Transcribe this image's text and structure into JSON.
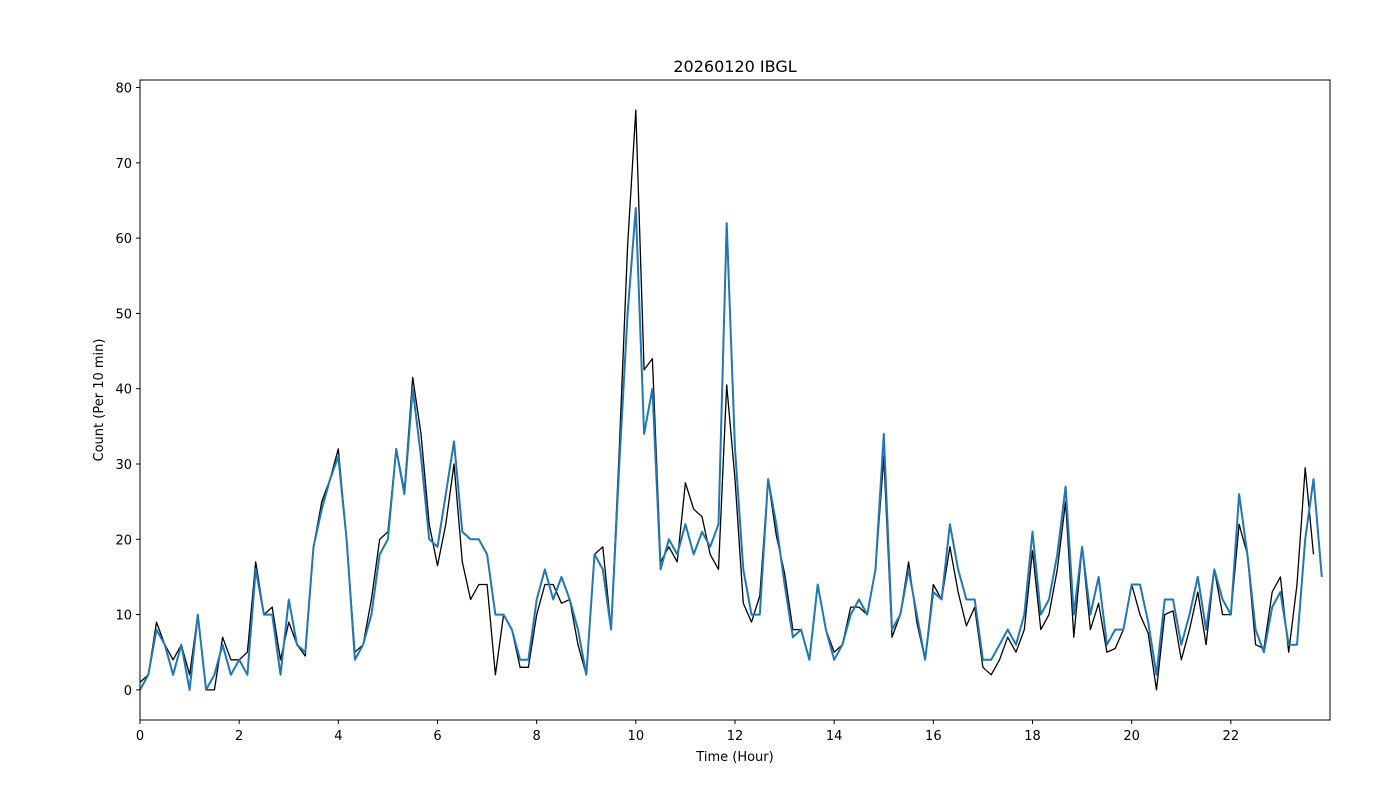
{
  "chart_data": {
    "type": "line",
    "title": "20260120 IBGL",
    "xlabel": "Time (Hour)",
    "ylabel": "Count (Per 10 min)",
    "xlim": [
      0,
      24
    ],
    "ylim": [
      -4,
      81
    ],
    "x_ticks": [
      0,
      2,
      4,
      6,
      8,
      10,
      12,
      14,
      16,
      18,
      20,
      22
    ],
    "y_ticks": [
      0,
      10,
      20,
      30,
      40,
      50,
      60,
      70,
      80
    ],
    "grid": false,
    "x_step_hours": 0.16667,
    "series": [
      {
        "color": "#000000",
        "values": [
          1,
          2,
          9,
          6,
          4,
          6,
          2,
          10,
          0,
          0,
          7,
          4,
          4,
          5,
          17,
          10,
          11,
          4,
          9,
          6,
          4.5,
          19,
          25,
          28,
          32,
          20,
          5,
          6,
          12,
          20,
          21,
          32,
          26.5,
          41.5,
          34,
          22,
          16.5,
          22,
          30,
          17,
          12,
          14,
          14,
          2,
          10,
          8,
          3,
          3,
          10,
          14,
          14,
          11.5,
          12,
          6,
          2,
          18,
          19,
          8,
          32,
          59,
          77,
          42.5,
          44,
          17,
          19,
          17,
          27.5,
          24,
          23,
          18,
          16,
          40.5,
          28,
          11.5,
          9,
          12.5,
          28,
          20.5,
          15.5,
          8,
          8,
          4,
          14,
          8,
          5,
          6,
          11,
          11,
          10,
          16,
          31,
          7,
          10,
          17,
          9,
          4,
          14,
          12,
          19,
          13,
          8.5,
          11,
          3,
          2,
          4,
          7,
          5,
          8,
          18.5,
          8,
          10,
          16,
          25,
          7,
          19,
          8,
          11.5,
          5,
          5.5,
          8,
          14,
          10,
          7.5,
          0,
          10,
          10.5,
          4,
          8,
          13,
          6,
          16,
          10,
          10,
          22,
          18,
          6,
          5.5,
          13,
          15,
          5,
          14,
          29.5,
          18
        ]
      },
      {
        "color": "#1f77b4",
        "values": [
          0,
          2,
          8,
          6,
          2,
          6,
          0,
          10,
          0,
          2,
          6,
          2,
          4,
          2,
          16,
          10,
          10,
          2,
          12,
          6,
          5,
          19,
          24,
          28,
          31,
          20,
          4,
          6,
          10,
          18,
          20,
          32,
          26,
          40,
          31,
          20,
          19,
          26,
          33,
          21,
          20,
          20,
          18,
          10,
          10,
          8,
          4,
          4,
          12,
          16,
          12,
          15,
          12,
          8,
          2,
          18,
          16,
          8,
          30,
          50,
          64,
          34,
          40,
          16,
          20,
          18,
          22,
          18,
          21,
          19,
          22,
          62,
          32,
          16,
          10,
          10,
          28,
          22,
          14,
          7,
          8,
          4,
          14,
          8,
          4,
          6,
          10,
          12,
          10,
          16,
          34,
          8,
          10,
          16,
          10,
          4,
          13,
          12,
          22,
          16,
          12,
          12,
          4,
          4,
          6,
          8,
          6,
          10,
          21,
          10,
          12,
          18,
          27,
          10,
          19,
          10,
          15,
          6,
          8,
          8,
          14,
          14,
          9,
          2,
          12,
          12,
          6,
          10,
          15,
          8,
          16,
          12,
          10,
          26,
          18,
          8,
          5,
          11,
          13,
          6,
          6,
          20,
          28,
          15
        ]
      }
    ]
  }
}
